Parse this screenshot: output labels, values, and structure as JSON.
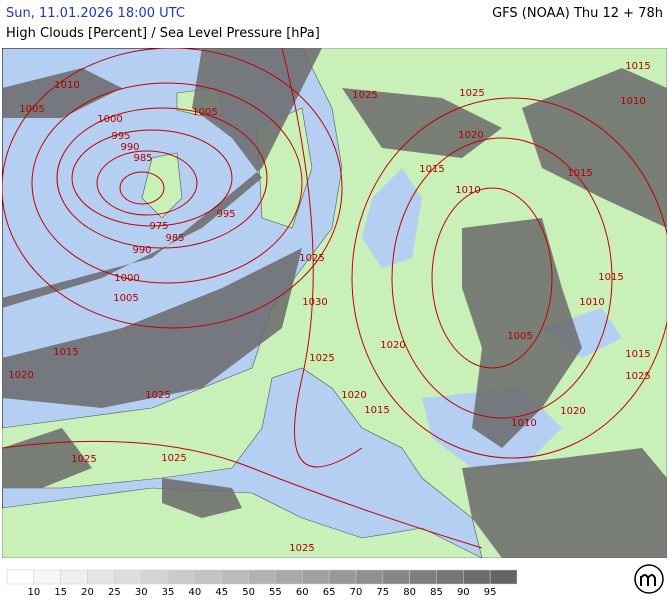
{
  "header": {
    "left": "Sun, 11.01.2026 18:00 UTC",
    "right": "GFS (NOAA) Thu 12 + 78h",
    "subtitle": "High Clouds [Percent] / Sea Level Pressure [hPa]"
  },
  "isobar_labels": [
    "1010",
    "1005",
    "1000",
    "995",
    "990",
    "985",
    "975",
    "985",
    "995",
    "990",
    "1000",
    "1005",
    "1015",
    "1020",
    "1025",
    "1025",
    "1025",
    "1025",
    "1005",
    "1025",
    "1025",
    "1020",
    "1015",
    "1010",
    "1015",
    "1015",
    "1010",
    "1025",
    "1030",
    "1025",
    "1020",
    "1020",
    "1015",
    "1005",
    "1010",
    "1015",
    "1015",
    "1025",
    "1020",
    "1010"
  ],
  "legend": {
    "values": [
      10,
      15,
      20,
      25,
      30,
      35,
      40,
      45,
      50,
      55,
      60,
      65,
      70,
      75,
      80,
      85,
      90,
      95
    ]
  }
}
